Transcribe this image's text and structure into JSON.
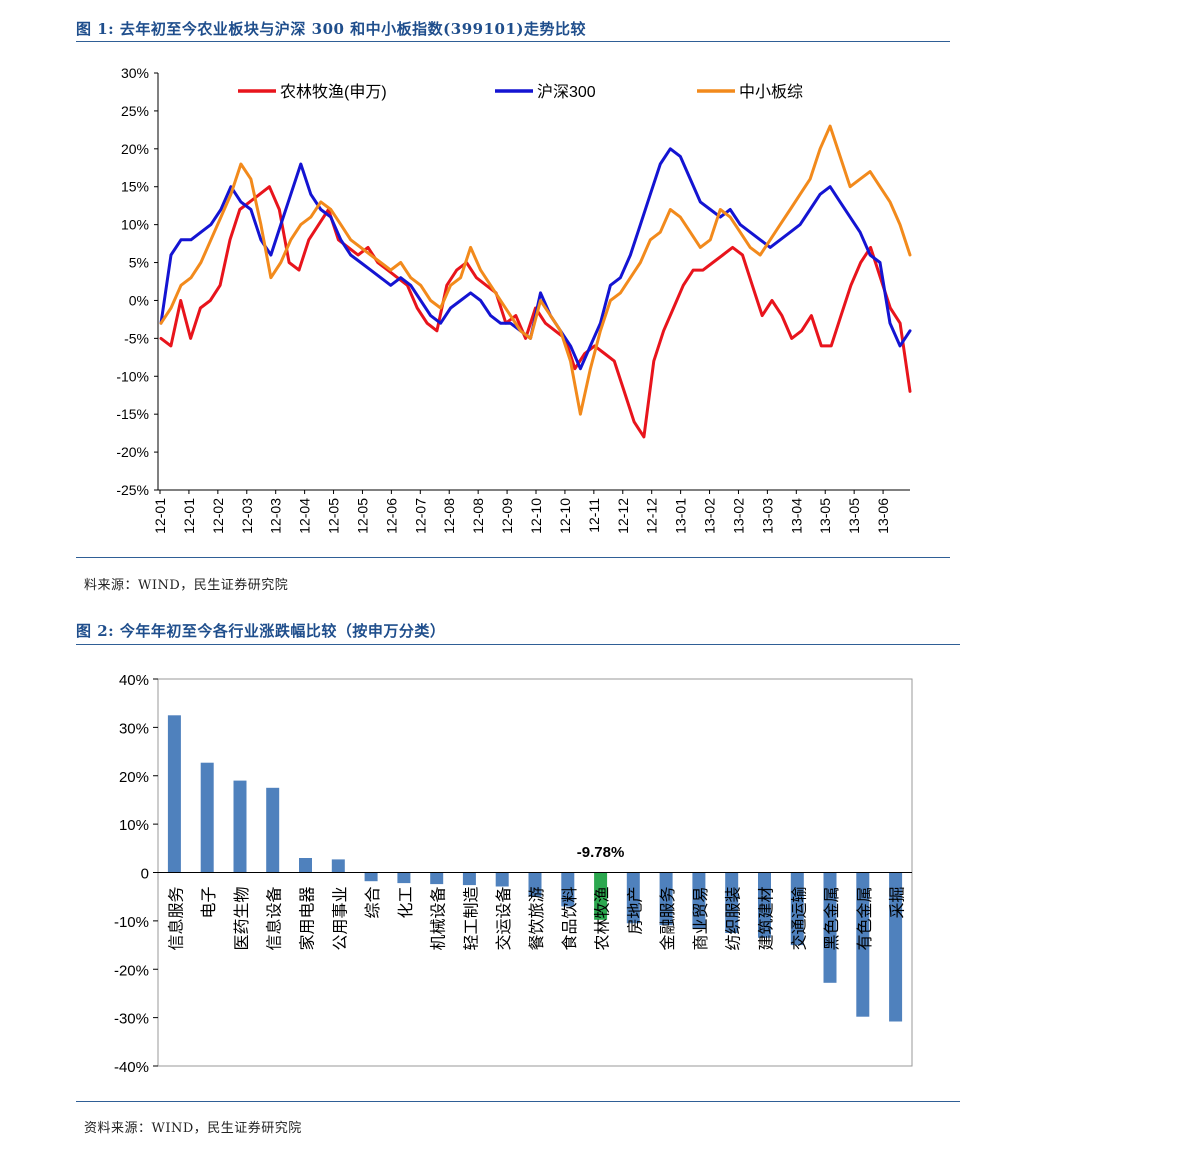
{
  "figure1": {
    "title": "图 1:  去年初至今农业板块与沪深 300 和中小板指数(399101)走势比较",
    "source": "料来源：WIND，民生证券研究院"
  },
  "figure2": {
    "title": "图 2:  今年年初至今各行业涨跌幅比较（按申万分类）",
    "source": "资料来源：WIND，民生证券研究院"
  },
  "chart_data": [
    {
      "type": "line",
      "ylim": [
        -25,
        30
      ],
      "y_ticks": [
        -25,
        -20,
        -15,
        -10,
        -5,
        0,
        5,
        10,
        15,
        20,
        25,
        30
      ],
      "y_tick_labels": [
        "-25%",
        "-20%",
        "-15%",
        "-10%",
        "-5%",
        "0%",
        "5%",
        "10%",
        "15%",
        "20%",
        "25%",
        "30%"
      ],
      "x_tick_labels": [
        "12-01",
        "12-01",
        "12-02",
        "12-03",
        "12-03",
        "12-04",
        "12-05",
        "12-05",
        "12-06",
        "12-07",
        "12-08",
        "12-08",
        "12-09",
        "12-10",
        "12-10",
        "12-11",
        "12-12",
        "12-12",
        "13-01",
        "13-02",
        "13-02",
        "13-03",
        "13-04",
        "13-05",
        "13-05",
        "13-06"
      ],
      "legend_position": "top",
      "series": [
        {
          "name": "农林牧渔(申万)",
          "color": "#e8141c",
          "values": [
            -5,
            -6,
            0,
            -5,
            -1,
            0,
            2,
            8,
            12,
            13,
            14,
            15,
            12,
            5,
            4,
            8,
            10,
            12,
            8,
            7,
            6,
            7,
            5,
            4,
            3,
            2,
            -1,
            -3,
            -4,
            2,
            4,
            5,
            3,
            2,
            1,
            -3,
            -2,
            -5,
            -1,
            -3,
            -4,
            -5,
            -9,
            -7,
            -6,
            -7,
            -8,
            -12,
            -16,
            -18,
            -8,
            -4,
            -1,
            2,
            4,
            4,
            5,
            6,
            7,
            6,
            2,
            -2,
            0,
            -2,
            -5,
            -4,
            -2,
            -6,
            -6,
            -2,
            2,
            5,
            7,
            3,
            -1,
            -3,
            -12
          ]
        },
        {
          "name": "沪深300",
          "color": "#1414d2",
          "values": [
            -3,
            6,
            8,
            8,
            9,
            10,
            12,
            15,
            13,
            12,
            8,
            6,
            10,
            14,
            18,
            14,
            12,
            11,
            8,
            6,
            5,
            4,
            3,
            2,
            3,
            2,
            0,
            -2,
            -3,
            -1,
            0,
            1,
            0,
            -2,
            -3,
            -3,
            -4,
            -5,
            1,
            -2,
            -4,
            -6,
            -9,
            -6,
            -3,
            2,
            3,
            6,
            10,
            14,
            18,
            20,
            19,
            16,
            13,
            12,
            11,
            12,
            10,
            9,
            8,
            7,
            8,
            9,
            10,
            12,
            14,
            15,
            13,
            11,
            9,
            6,
            5,
            -3,
            -6,
            -4
          ]
        },
        {
          "name": "中小板综",
          "color": "#f28a1c",
          "values": [
            -3,
            -1,
            2,
            3,
            5,
            8,
            11,
            14,
            18,
            16,
            10,
            3,
            5,
            8,
            10,
            11,
            13,
            12,
            10,
            8,
            7,
            6,
            5,
            4,
            5,
            3,
            2,
            0,
            -1,
            2,
            3,
            7,
            4,
            2,
            0,
            -2,
            -4,
            -5,
            0,
            -2,
            -4,
            -8,
            -15,
            -9,
            -4,
            0,
            1,
            3,
            5,
            8,
            9,
            12,
            11,
            9,
            7,
            8,
            12,
            11,
            9,
            7,
            6,
            8,
            10,
            12,
            14,
            16,
            20,
            23,
            19,
            15,
            16,
            17,
            15,
            13,
            10,
            6
          ]
        }
      ]
    },
    {
      "type": "bar",
      "ylim": [
        -40,
        40
      ],
      "y_ticks": [
        -40,
        -30,
        -20,
        -10,
        0,
        10,
        20,
        30,
        40
      ],
      "y_tick_labels": [
        "-40%",
        "-30%",
        "-20%",
        "-10%",
        "0",
        "10%",
        "20%",
        "30%",
        "40%"
      ],
      "categories": [
        "信息服务",
        "电子",
        "医药生物",
        "信息设备",
        "家用电器",
        "公用事业",
        "综合",
        "化工",
        "机械设备",
        "轻工制造",
        "交运设备",
        "餐饮旅游",
        "食品饮料",
        "农林牧渔",
        "房地产",
        "金融服务",
        "商业贸易",
        "纺织服装",
        "建筑建材",
        "交通运输",
        "黑色金属",
        "有色金属",
        "采掘"
      ],
      "values": [
        32.5,
        22.7,
        19.0,
        17.5,
        3.0,
        2.7,
        -1.8,
        -2.2,
        -2.4,
        -2.6,
        -2.9,
        -5.0,
        -7.0,
        -9.78,
        -10.5,
        -10.9,
        -11.5,
        -12.5,
        -13.5,
        -15.0,
        -22.8,
        -29.8,
        -30.8
      ],
      "bar_color": "#4f81bd",
      "highlight_index": 13,
      "highlight_color": "#2ca84f",
      "annotation": "-9.78%"
    }
  ]
}
